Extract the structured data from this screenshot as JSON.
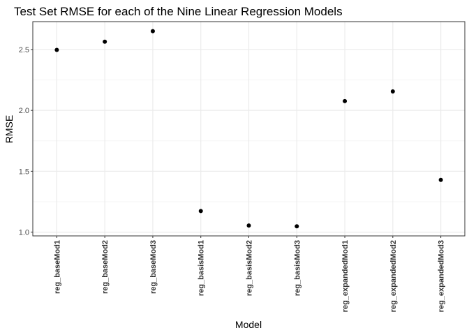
{
  "chart_data": {
    "type": "scatter",
    "title": "Test Set RMSE for each of the Nine Linear Regression Models",
    "xlabel": "Model",
    "ylabel": "RMSE",
    "categories": [
      "reg_baseMod1",
      "reg_baseMod2",
      "reg_baseMod3",
      "reg_basisMod1",
      "reg_basisMod2",
      "reg_basisMod3",
      "reg_expandedMod1",
      "reg_expandedMod2",
      "reg_expandedMod3"
    ],
    "values": [
      2.497,
      2.564,
      2.651,
      1.173,
      1.054,
      1.048,
      2.076,
      2.156,
      1.429
    ],
    "ylim": [
      0.969,
      2.729
    ],
    "yticks": [
      1.0,
      1.5,
      2.0,
      2.5
    ],
    "ytick_labels": [
      "1.0",
      "1.5",
      "2.0",
      "2.5"
    ],
    "grid": true,
    "legend": "none",
    "colors": {
      "point": "#000000",
      "grid_major": "#ebebeb",
      "grid_minor": "#f5f5f5",
      "panel_border": "#333333"
    }
  }
}
